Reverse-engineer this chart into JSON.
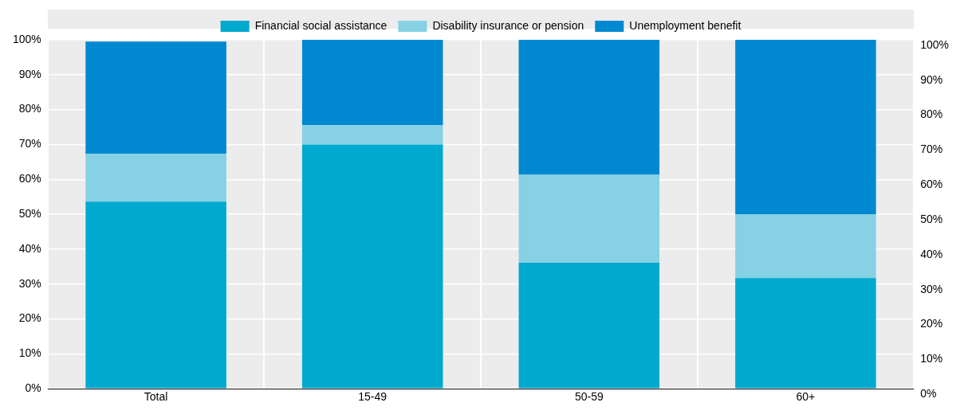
{
  "chart_data": {
    "type": "bar",
    "stacked": true,
    "categories": [
      "Total",
      "15-49",
      "50-59",
      "60+"
    ],
    "series": [
      {
        "name": "Financial social assistance",
        "color": "#00a9ce",
        "values": [
          53.6,
          70,
          36.1,
          31.7
        ]
      },
      {
        "name": "Disability insurance or pension",
        "color": "#86d1e4",
        "values": [
          13.7,
          5.5,
          25.2,
          18.3
        ]
      },
      {
        "name": "Unemployment benefit",
        "color": "#0088d1",
        "values": [
          32.2,
          24.5,
          38.7,
          50
        ]
      }
    ],
    "ylim": [
      0,
      100
    ],
    "yticks": [
      {
        "value": 0,
        "label": "0%"
      },
      {
        "value": 10,
        "label": "10%"
      },
      {
        "value": 20,
        "label": "20%"
      },
      {
        "value": 30,
        "label": "30%"
      },
      {
        "value": 40,
        "label": "40%"
      },
      {
        "value": 50,
        "label": "50%"
      },
      {
        "value": 60,
        "label": "60%"
      },
      {
        "value": 70,
        "label": "70%"
      },
      {
        "value": 80,
        "label": "80%"
      },
      {
        "value": 90,
        "label": "90%"
      },
      {
        "value": 100,
        "label": "100%"
      }
    ],
    "y2lim": [
      0,
      100
    ],
    "y2ticks": [
      {
        "value": 0,
        "label": "0%"
      },
      {
        "value": 10,
        "label": "10%"
      },
      {
        "value": 20,
        "label": "20%"
      },
      {
        "value": 30,
        "label": "30%"
      },
      {
        "value": 40,
        "label": "40%"
      },
      {
        "value": 50,
        "label": "50%"
      },
      {
        "value": 60,
        "label": "60%"
      },
      {
        "value": 70,
        "label": "70%"
      },
      {
        "value": 80,
        "label": "80%"
      },
      {
        "value": 90,
        "label": "90%"
      },
      {
        "value": 100,
        "label": "100%"
      }
    ],
    "grid": true,
    "legend": "top"
  }
}
